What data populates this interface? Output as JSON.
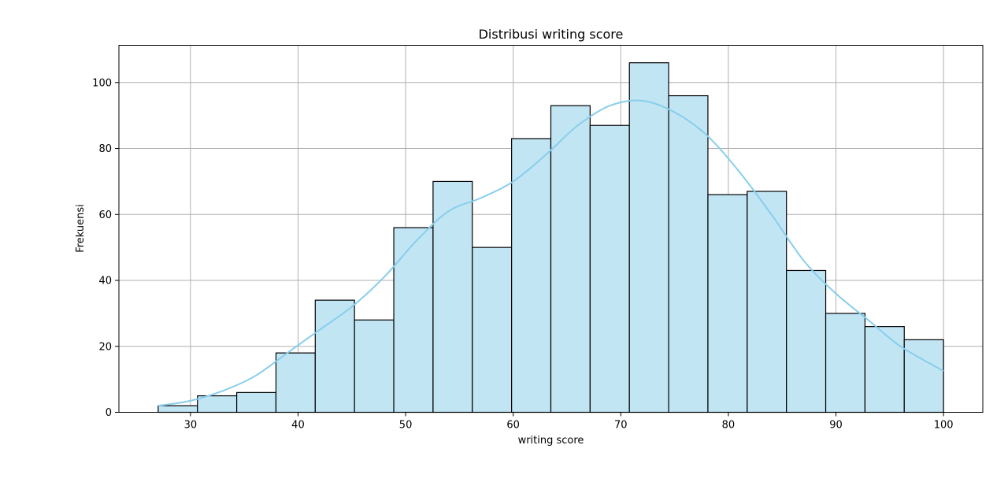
{
  "chart_data": {
    "type": "bar",
    "title": "Distribusi writing score",
    "xlabel": "writing score",
    "ylabel": "Frekuensi",
    "xlim": [
      23.35,
      103.65
    ],
    "ylim": [
      0,
      111.3
    ],
    "xticks": [
      30,
      40,
      50,
      60,
      70,
      80,
      90,
      100
    ],
    "yticks": [
      0,
      20,
      40,
      60,
      80,
      100
    ],
    "grid": true,
    "bin_edges": [
      27,
      30.65,
      34.3,
      37.95,
      41.6,
      45.25,
      48.9,
      52.55,
      56.2,
      59.85,
      63.5,
      67.15,
      70.8,
      74.45,
      78.1,
      81.75,
      85.4,
      89.05,
      92.7,
      96.35,
      100
    ],
    "values": [
      2,
      5,
      6,
      18,
      34,
      28,
      56,
      70,
      50,
      83,
      93,
      87,
      106,
      96,
      66,
      67,
      43,
      30,
      26,
      22
    ],
    "kde": {
      "x": [
        27,
        30,
        33,
        36,
        39,
        42,
        45,
        48,
        51,
        54,
        57,
        60,
        63,
        66,
        69,
        72,
        75,
        78,
        81,
        84,
        87,
        90,
        93,
        96,
        100
      ],
      "y": [
        2,
        3.5,
        6.5,
        11,
        18,
        25,
        32,
        41,
        52,
        61,
        65,
        70,
        78,
        87,
        93,
        94.5,
        91,
        84,
        73,
        60,
        46,
        36,
        28,
        20,
        12.5
      ]
    },
    "colors": {
      "bar_fill": "#c2e5f4",
      "bar_edge": "#000000",
      "kde_line": "#87ceeb",
      "grid": "#b0b0b0"
    }
  }
}
